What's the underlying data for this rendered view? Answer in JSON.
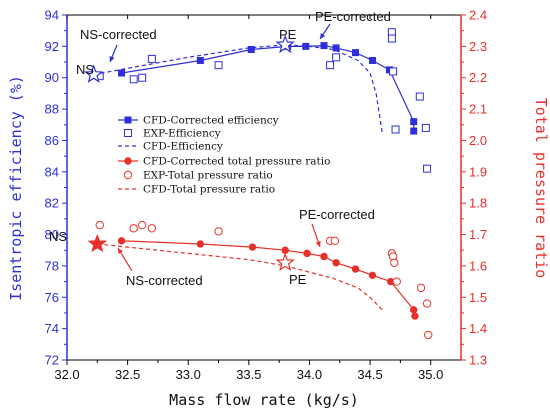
{
  "chart_data": {
    "type": "line",
    "xlabel": "Mass flow rate (kg/s)",
    "ylabel_left": "Isentropic efficiency (%)",
    "ylabel_right": "Total pressure ratio",
    "xlim": [
      32.0,
      35.25
    ],
    "ylim_left": [
      72,
      94
    ],
    "ylim_right": [
      1.3,
      2.4
    ],
    "x_ticks": [
      "32.0",
      "32.5",
      "33.0",
      "33.5",
      "34.0",
      "34.5",
      "35.0"
    ],
    "y_left_ticks": [
      "72",
      "74",
      "76",
      "78",
      "80",
      "82",
      "84",
      "86",
      "88",
      "90",
      "92",
      "94"
    ],
    "y_right_ticks": [
      "1.3",
      "1.4",
      "1.5",
      "1.6",
      "1.7",
      "1.8",
      "1.9",
      "2.0",
      "2.1",
      "2.2",
      "2.3",
      "2.4"
    ],
    "legend_position": "center-left",
    "series": [
      {
        "name": "CFD-Corrected efficiency",
        "axis": "left",
        "color": "#2f2fd8",
        "style": "solid",
        "marker": "filled-square",
        "x": [
          32.45,
          33.1,
          33.52,
          33.82,
          33.97,
          34.12,
          34.22,
          34.38,
          34.52,
          34.66,
          34.86,
          34.86
        ],
        "y": [
          90.3,
          91.1,
          91.8,
          92.0,
          92.0,
          92.05,
          91.9,
          91.6,
          91.1,
          90.5,
          87.2,
          86.6
        ]
      },
      {
        "name": "EXP-Efficiency",
        "axis": "left",
        "color": "#2f2fd8",
        "style": "none",
        "marker": "open-square",
        "x": [
          32.27,
          32.55,
          32.62,
          32.7,
          33.25,
          34.17,
          34.22,
          34.68,
          34.68,
          34.69,
          34.71,
          34.91,
          34.96,
          34.97
        ],
        "y": [
          90.1,
          89.9,
          90.0,
          91.2,
          90.8,
          90.8,
          91.3,
          92.9,
          92.5,
          90.4,
          86.7,
          88.8,
          86.8,
          84.2
        ]
      },
      {
        "name": "CFD-Efficiency",
        "axis": "left",
        "color": "#2f2fd8",
        "style": "dashed",
        "marker": "none",
        "x": [
          32.22,
          32.5,
          33.0,
          33.5,
          33.8,
          34.0,
          34.2,
          34.4,
          34.5,
          34.55,
          34.6
        ],
        "y": [
          90.2,
          90.6,
          91.3,
          91.9,
          92.1,
          92.0,
          91.8,
          91.1,
          90.3,
          89.0,
          86.5
        ]
      },
      {
        "name": "CFD-Corrected total pressure ratio",
        "axis": "right",
        "color": "#e8302a",
        "style": "solid",
        "marker": "filled-circle",
        "x": [
          32.45,
          33.1,
          33.53,
          33.8,
          33.98,
          34.12,
          34.22,
          34.38,
          34.52,
          34.67,
          34.86,
          34.87
        ],
        "y": [
          1.68,
          1.67,
          1.66,
          1.65,
          1.64,
          1.63,
          1.61,
          1.59,
          1.57,
          1.55,
          1.46,
          1.44
        ]
      },
      {
        "name": "EXP-Total pressure ratio",
        "axis": "right",
        "color": "#e8302a",
        "style": "none",
        "marker": "open-circle",
        "x": [
          32.27,
          32.55,
          32.62,
          32.7,
          33.25,
          34.17,
          34.21,
          34.68,
          34.69,
          34.7,
          34.72,
          34.92,
          34.97,
          34.98
        ],
        "y": [
          1.73,
          1.72,
          1.73,
          1.72,
          1.71,
          1.68,
          1.68,
          1.64,
          1.63,
          1.61,
          1.55,
          1.53,
          1.48,
          1.38
        ]
      },
      {
        "name": "CFD-Total pressure ratio",
        "axis": "right",
        "color": "#e8302a",
        "style": "dashed",
        "marker": "none",
        "x": [
          32.25,
          32.5,
          33.0,
          33.5,
          33.8,
          34.0,
          34.2,
          34.4,
          34.5,
          34.6
        ],
        "y": [
          1.67,
          1.66,
          1.64,
          1.62,
          1.6,
          1.58,
          1.56,
          1.53,
          1.5,
          1.46
        ]
      }
    ],
    "star_markers": [
      {
        "label": "NS",
        "axis": "left",
        "x": 32.22,
        "y": 90.2,
        "style": "open",
        "color": "#2f2fd8"
      },
      {
        "label": "PE",
        "axis": "left",
        "x": 33.8,
        "y": 92.1,
        "style": "open",
        "color": "#2f2fd8"
      },
      {
        "label": "NS",
        "axis": "right",
        "x": 32.25,
        "y": 1.67,
        "style": "filled",
        "color": "#e8302a"
      },
      {
        "label": "PE",
        "axis": "right",
        "x": 33.8,
        "y": 1.61,
        "style": "open",
        "color": "#e8302a"
      }
    ],
    "annotations": [
      {
        "text": "NS-corrected",
        "target_x": 32.45,
        "target_y": 90.3,
        "axis": "left"
      },
      {
        "text": "PE-corrected",
        "target_x": 33.97,
        "target_y": 92.0,
        "axis": "left"
      },
      {
        "text": "NS",
        "target_x": 32.22,
        "target_y": 90.2,
        "axis": "left"
      },
      {
        "text": "PE",
        "target_x": 33.8,
        "target_y": 92.1,
        "axis": "left"
      },
      {
        "text": "NS",
        "target_x": 32.25,
        "target_y": 1.67,
        "axis": "right"
      },
      {
        "text": "NS-corrected",
        "target_x": 32.45,
        "target_y": 1.68,
        "axis": "right"
      },
      {
        "text": "PE-corrected",
        "target_x": 33.98,
        "target_y": 1.64,
        "axis": "right"
      },
      {
        "text": "PE",
        "target_x": 33.8,
        "target_y": 1.61,
        "axis": "right"
      }
    ]
  }
}
